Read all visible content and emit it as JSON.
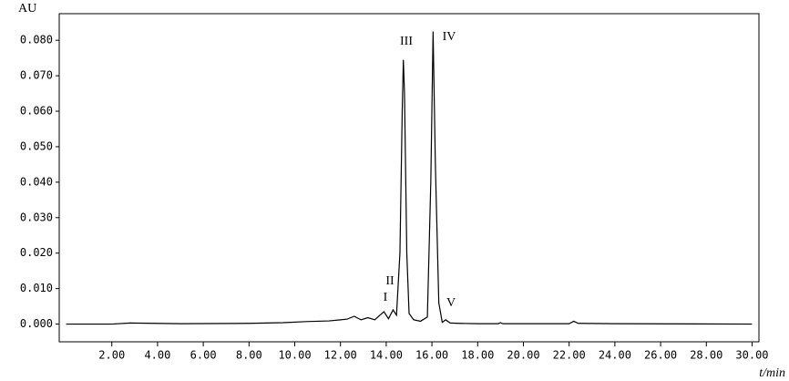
{
  "chart_data": {
    "type": "line",
    "x_label": "t/min",
    "y_label": "AU",
    "annotations": [
      "I",
      "II",
      "III",
      "IV",
      "V"
    ],
    "color": "#000000",
    "xlim": [
      -0.3,
      30.3
    ],
    "ylim": [
      -0.005,
      0.0875
    ],
    "xticks": [
      {
        "value": 2,
        "label": "2.00"
      },
      {
        "value": 4,
        "label": "4.00"
      },
      {
        "value": 6,
        "label": "6.00"
      },
      {
        "value": 8,
        "label": "8.00"
      },
      {
        "value": 10,
        "label": "10.00"
      },
      {
        "value": 12,
        "label": "12.00"
      },
      {
        "value": 14,
        "label": "14.00"
      },
      {
        "value": 16,
        "label": "16.00"
      },
      {
        "value": 18,
        "label": "18.00"
      },
      {
        "value": 20,
        "label": "20.00"
      },
      {
        "value": 22,
        "label": "22.00"
      },
      {
        "value": 24,
        "label": "24.00"
      },
      {
        "value": 26,
        "label": "26.00"
      },
      {
        "value": 28,
        "label": "28.00"
      },
      {
        "value": 30,
        "label": "30.00"
      }
    ],
    "yticks": [
      {
        "value": 0,
        "label": "0.000"
      },
      {
        "value": 0.01,
        "label": "0.010"
      },
      {
        "value": 0.02,
        "label": "0.020"
      },
      {
        "value": 0.03,
        "label": "0.030"
      },
      {
        "value": 0.04,
        "label": "0.040"
      },
      {
        "value": 0.05,
        "label": "0.050"
      },
      {
        "value": 0.06,
        "label": "0.060"
      },
      {
        "value": 0.07,
        "label": "0.070"
      },
      {
        "value": 0.08,
        "label": "0.080"
      }
    ],
    "x": [
      0,
      2,
      2.8,
      5,
      8,
      9.5,
      10.5,
      11,
      11.5,
      12,
      12.3,
      12.6,
      12.9,
      13.2,
      13.5,
      13.9,
      14.1,
      14.3,
      14.45,
      14.6,
      14.7,
      14.75,
      14.8,
      14.9,
      15.0,
      15.2,
      15.5,
      15.8,
      15.95,
      16.05,
      16.15,
      16.3,
      16.45,
      16.6,
      16.8,
      17.2,
      18,
      18.9,
      19,
      19.1,
      22,
      22.2,
      22.4,
      24,
      30
    ],
    "values": [
      0,
      0,
      0.0003,
      0.0001,
      0.0002,
      0.0004,
      0.0007,
      0.0008,
      0.0009,
      0.0012,
      0.0014,
      0.0022,
      0.0012,
      0.0018,
      0.0012,
      0.0035,
      0.0015,
      0.004,
      0.0025,
      0.02,
      0.06,
      0.0745,
      0.065,
      0.02,
      0.003,
      0.0012,
      0.0008,
      0.002,
      0.04,
      0.0825,
      0.045,
      0.006,
      0.0005,
      0.0012,
      0.0003,
      0.0002,
      0.0001,
      0.0001,
      0.0004,
      0.0001,
      0.0001,
      0.0008,
      0.0002,
      0.0001,
      0
    ]
  }
}
